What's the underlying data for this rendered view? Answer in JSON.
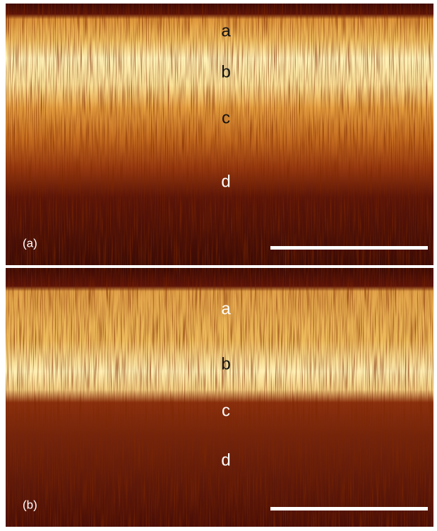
{
  "panels": [
    {
      "label": "(a)",
      "layers": [
        "a",
        "b",
        "c",
        "d"
      ]
    },
    {
      "label": "(b)",
      "layers": [
        "a",
        "b",
        "c",
        "d"
      ]
    }
  ]
}
